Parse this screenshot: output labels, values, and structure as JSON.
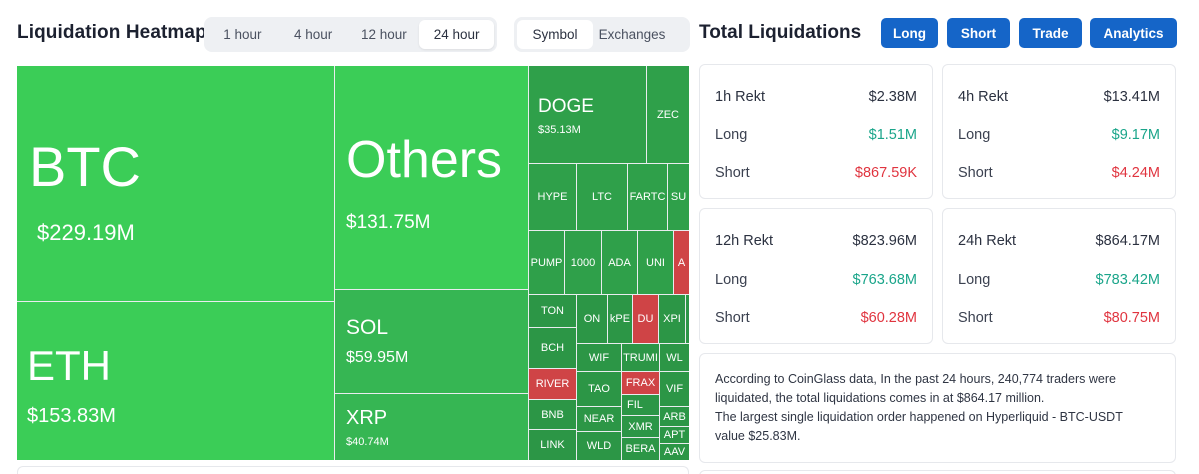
{
  "header": {
    "title": "Liquidation Heatmap",
    "time_options": [
      "1 hour",
      "4 hour",
      "12 hour",
      "24 hour"
    ],
    "time_selected": "24 hour",
    "view_options": [
      "Symbol",
      "Exchanges"
    ],
    "view_selected": "Symbol"
  },
  "totals": {
    "title": "Total Liquidations",
    "buttons": [
      "Long",
      "Short",
      "Trade",
      "Analytics"
    ]
  },
  "heatmap": {
    "tiles": [
      {
        "symbol": "BTC",
        "value": "$229.19M"
      },
      {
        "symbol": "ETH",
        "value": "$153.83M"
      },
      {
        "symbol": "Others",
        "value": "$131.75M"
      },
      {
        "symbol": "SOL",
        "value": "$59.95M"
      },
      {
        "symbol": "XRP",
        "value": "$40.74M"
      },
      {
        "symbol": "DOGE",
        "value": "$35.13M"
      },
      {
        "symbol": "ZEC",
        "value": ""
      },
      {
        "symbol": "HYPE",
        "value": ""
      },
      {
        "symbol": "LTC",
        "value": ""
      },
      {
        "symbol": "FARTC",
        "value": ""
      },
      {
        "symbol": "SU",
        "value": ""
      },
      {
        "symbol": "PUMP",
        "value": ""
      },
      {
        "symbol": "1000",
        "value": ""
      },
      {
        "symbol": "ADA",
        "value": ""
      },
      {
        "symbol": "UNI",
        "value": ""
      },
      {
        "symbol": "A",
        "value": ""
      },
      {
        "symbol": "TON",
        "value": ""
      },
      {
        "symbol": "ON",
        "value": ""
      },
      {
        "symbol": "kPE",
        "value": ""
      },
      {
        "symbol": "DU",
        "value": ""
      },
      {
        "symbol": "XPI",
        "value": ""
      },
      {
        "symbol": "BCH",
        "value": ""
      },
      {
        "symbol": "WIF",
        "value": ""
      },
      {
        "symbol": "TRUMI",
        "value": ""
      },
      {
        "symbol": "WL",
        "value": ""
      },
      {
        "symbol": "RIVER",
        "value": ""
      },
      {
        "symbol": "TAO",
        "value": ""
      },
      {
        "symbol": "FRAX",
        "value": ""
      },
      {
        "symbol": "VIF",
        "value": ""
      },
      {
        "symbol": "BNB",
        "value": ""
      },
      {
        "symbol": "NEAR",
        "value": ""
      },
      {
        "symbol": "FIL",
        "value": ""
      },
      {
        "symbol": "ARB",
        "value": ""
      },
      {
        "symbol": "XMR",
        "value": ""
      },
      {
        "symbol": "LINK",
        "value": ""
      },
      {
        "symbol": "WLD",
        "value": ""
      },
      {
        "symbol": "BERA",
        "value": ""
      },
      {
        "symbol": "APT",
        "value": ""
      },
      {
        "symbol": "AAV",
        "value": ""
      }
    ]
  },
  "cards": [
    {
      "label": "1h Rekt",
      "total": "$2.38M",
      "long_label": "Long",
      "long": "$1.51M",
      "short_label": "Short",
      "short": "$867.59K"
    },
    {
      "label": "4h Rekt",
      "total": "$13.41M",
      "long_label": "Long",
      "long": "$9.17M",
      "short_label": "Short",
      "short": "$4.24M"
    },
    {
      "label": "12h Rekt",
      "total": "$823.96M",
      "long_label": "Long",
      "long": "$763.68M",
      "short_label": "Short",
      "short": "$60.28M"
    },
    {
      "label": "24h Rekt",
      "total": "$864.17M",
      "long_label": "Long",
      "long": "$783.42M",
      "short_label": "Short",
      "short": "$80.75M"
    }
  ],
  "info": {
    "line1": "According to CoinGlass data, In the past 24 hours, 240,774 traders were",
    "line2": "liquidated, the total liquidations comes in at $864.17 million.",
    "line3": "The largest single liquidation order happened on Hyperliquid - BTC-USDT",
    "line4": "value $25.83M."
  },
  "colors": {
    "accent": "#1565c8",
    "positive": "#1aa58a",
    "negative": "#e0343f",
    "heat_green": "#3bcd57",
    "heat_red": "#cf4446"
  }
}
